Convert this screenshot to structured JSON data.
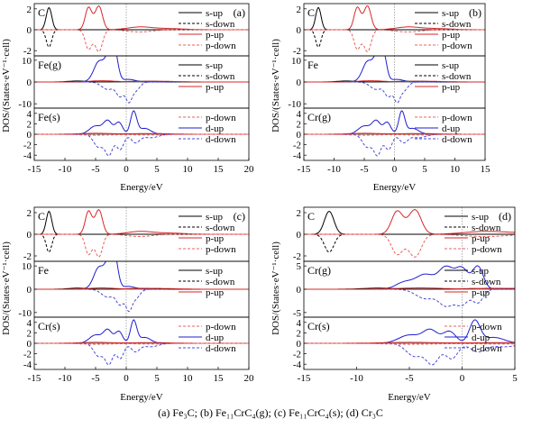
{
  "caption": {
    "a": "(a) Fe₃C;",
    "b": "(b) Fe₁₁CrC₄(g);",
    "c": "(c) Fe₁₁CrC₄(s);",
    "d": "(d) Cr₃C"
  },
  "colors": {
    "s_up": "#000000",
    "s_down": "#000000",
    "p_up": "#d62728",
    "p_down": "#e8605f",
    "d_up": "#1f1fd0",
    "d_down": "#4a4ad8",
    "fermi": "#999999"
  },
  "chart_data": [
    {
      "type": "line",
      "panel_label": "(a)",
      "xlabel": "Energy/eV",
      "ylabel": "DOS/(States·eV⁻¹·cell)",
      "xlim": [
        -15,
        20
      ],
      "xticks": [
        "-15",
        "-10",
        "-5",
        "0",
        "5",
        "10",
        "15",
        "20"
      ],
      "subplots": [
        {
          "label": "C",
          "ylim": [
            -2.5,
            2.5
          ],
          "yticks": [
            "2",
            "0",
            "-2"
          ],
          "legend": [
            "s-up",
            "s-down",
            "p-up",
            "p-down"
          ]
        },
        {
          "label": "Fe(g)",
          "ylim": [
            -12,
            12
          ],
          "yticks": [
            "10",
            "0",
            "-10"
          ],
          "legend": [
            "s-up",
            "s-down",
            "p-up"
          ]
        },
        {
          "label": "Fe(s)",
          "ylim": [
            -5,
            5
          ],
          "yticks": [
            "4",
            "2",
            "0",
            "-2",
            "-4"
          ],
          "legend": [
            "p-down",
            "d-up",
            "d-down"
          ]
        }
      ]
    },
    {
      "type": "line",
      "panel_label": "(b)",
      "xlabel": "Energy/eV",
      "ylabel": "DOS/(States·eV⁻¹·cell)",
      "xlim": [
        -15,
        15
      ],
      "xticks": [
        "-15",
        "-10",
        "-5",
        "0",
        "5",
        "10",
        "15"
      ],
      "subplots": [
        {
          "label": "C",
          "ylim": [
            -2.5,
            2.5
          ],
          "yticks": [
            "2",
            "0",
            "-2"
          ],
          "legend": [
            "s-up",
            "s-down",
            "p-up",
            "p-down"
          ]
        },
        {
          "label": "Fe",
          "ylim": [
            -12,
            12
          ],
          "yticks": [
            "10",
            "0",
            "-10"
          ],
          "legend": [
            "s-up",
            "s-down",
            "p-up"
          ]
        },
        {
          "label": "Cr(g)",
          "ylim": [
            -5,
            5
          ],
          "yticks": [
            "4",
            "2",
            "0",
            "-2",
            "-4"
          ],
          "legend": [
            "p-down",
            "d-up",
            "d-down"
          ]
        }
      ]
    },
    {
      "type": "line",
      "panel_label": "(c)",
      "xlabel": "Energy/eV",
      "ylabel": "DOS/(States·eV⁻¹·cell)",
      "xlim": [
        -15,
        20
      ],
      "xticks": [
        "-15",
        "-10",
        "-5",
        "0",
        "5",
        "10",
        "15",
        "20"
      ],
      "subplots": [
        {
          "label": "C",
          "ylim": [
            -2.5,
            2.5
          ],
          "yticks": [
            "2",
            "0",
            "-2"
          ],
          "legend": [
            "s-up",
            "s-down",
            "p-up",
            "p-down"
          ]
        },
        {
          "label": "Fe",
          "ylim": [
            -12,
            12
          ],
          "yticks": [
            "10",
            "0",
            "-10"
          ],
          "legend": [
            "s-up",
            "s-down",
            "p-up"
          ]
        },
        {
          "label": "Cr(s)",
          "ylim": [
            -5,
            5
          ],
          "yticks": [
            "4",
            "2",
            "0",
            "-2",
            "-4"
          ],
          "legend": [
            "p-down",
            "d-up",
            "d-down"
          ]
        }
      ]
    },
    {
      "type": "line",
      "panel_label": "(d)",
      "xlabel": "Energy/eV",
      "ylabel": "DOS/(States·eV⁻¹·cell)",
      "xlim": [
        -15,
        5
      ],
      "xticks": [
        "-15",
        "-10",
        "-5",
        "0",
        "5"
      ],
      "subplots": [
        {
          "label": "C",
          "ylim": [
            -2.5,
            2.5
          ],
          "yticks": [
            "2",
            "0",
            "-2"
          ],
          "legend": [
            "s-up",
            "s-down",
            "p-up",
            "p-down"
          ]
        },
        {
          "label": "Cr(g)",
          "ylim": [
            -6,
            6
          ],
          "yticks": [
            "5",
            "0",
            "-5"
          ],
          "legend": [
            "s-up",
            "s-down",
            "p-up"
          ]
        },
        {
          "label": "Cr(s)",
          "ylim": [
            -5,
            5
          ],
          "yticks": [
            "4",
            "2",
            "0",
            "-2",
            "-4"
          ],
          "legend": [
            "p-down",
            "d-up",
            "d-down"
          ]
        }
      ]
    }
  ]
}
